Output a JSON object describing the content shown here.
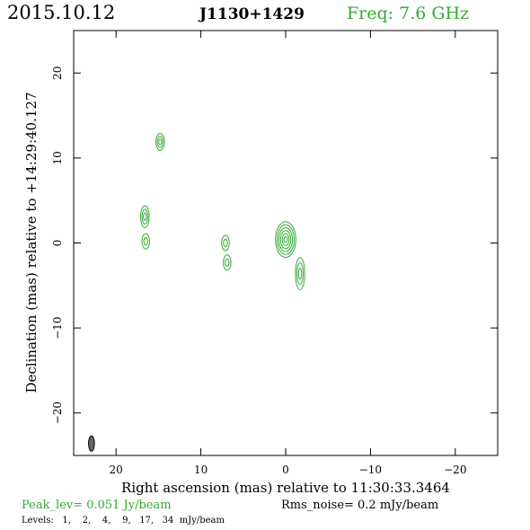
{
  "header": {
    "date": "2015.10.12",
    "source": "J1130+1429",
    "freq": "Freq: 7.6 GHz"
  },
  "footer": {
    "peak": "Peak_lev=  0.051 Jy/beam",
    "rms": "Rms_noise=   0.2 mJy/beam",
    "levels": "Levels:   1,    2,    4,    9,   17,   34  mJy/beam"
  },
  "colors": {
    "accent": "#33aa33",
    "frame": "#000000",
    "beam": "#666666"
  },
  "chart_data": {
    "type": "contour",
    "xlabel": "Right ascension (mas) relative to 11:30:33.3464",
    "ylabel": "Declination (mas) relative to +14:29:40.127",
    "xlim": [
      25,
      -25
    ],
    "ylim": [
      -25,
      25
    ],
    "x_ticks": [
      20,
      10,
      0,
      -10,
      -20
    ],
    "y_ticks": [
      20,
      10,
      0,
      -10,
      -20
    ],
    "x_tick_labels": [
      "20",
      "10",
      "0",
      "−10",
      "−20"
    ],
    "y_tick_labels": [
      "20",
      "10",
      "0",
      "−10",
      "−20"
    ],
    "levels_mJy": [
      1,
      2,
      4,
      9,
      17,
      34
    ],
    "components": [
      {
        "x": 0.0,
        "y": 0.4,
        "rx": 1.2,
        "ry": 2.1,
        "levels": 6
      },
      {
        "x": -1.7,
        "y": -3.6,
        "rx": 0.55,
        "ry": 1.9,
        "levels": 3
      },
      {
        "x": 7.1,
        "y": 0.0,
        "rx": 0.45,
        "ry": 0.9,
        "levels": 2
      },
      {
        "x": 6.9,
        "y": -2.3,
        "rx": 0.45,
        "ry": 0.9,
        "levels": 2
      },
      {
        "x": 16.6,
        "y": 3.1,
        "rx": 0.5,
        "ry": 1.3,
        "levels": 3
      },
      {
        "x": 16.5,
        "y": 0.2,
        "rx": 0.45,
        "ry": 0.9,
        "levels": 2
      },
      {
        "x": 14.8,
        "y": 11.9,
        "rx": 0.5,
        "ry": 1.0,
        "levels": 3
      }
    ],
    "beam": {
      "x": 22.9,
      "y": -23.6,
      "rx": 0.35,
      "ry": 0.9
    }
  }
}
